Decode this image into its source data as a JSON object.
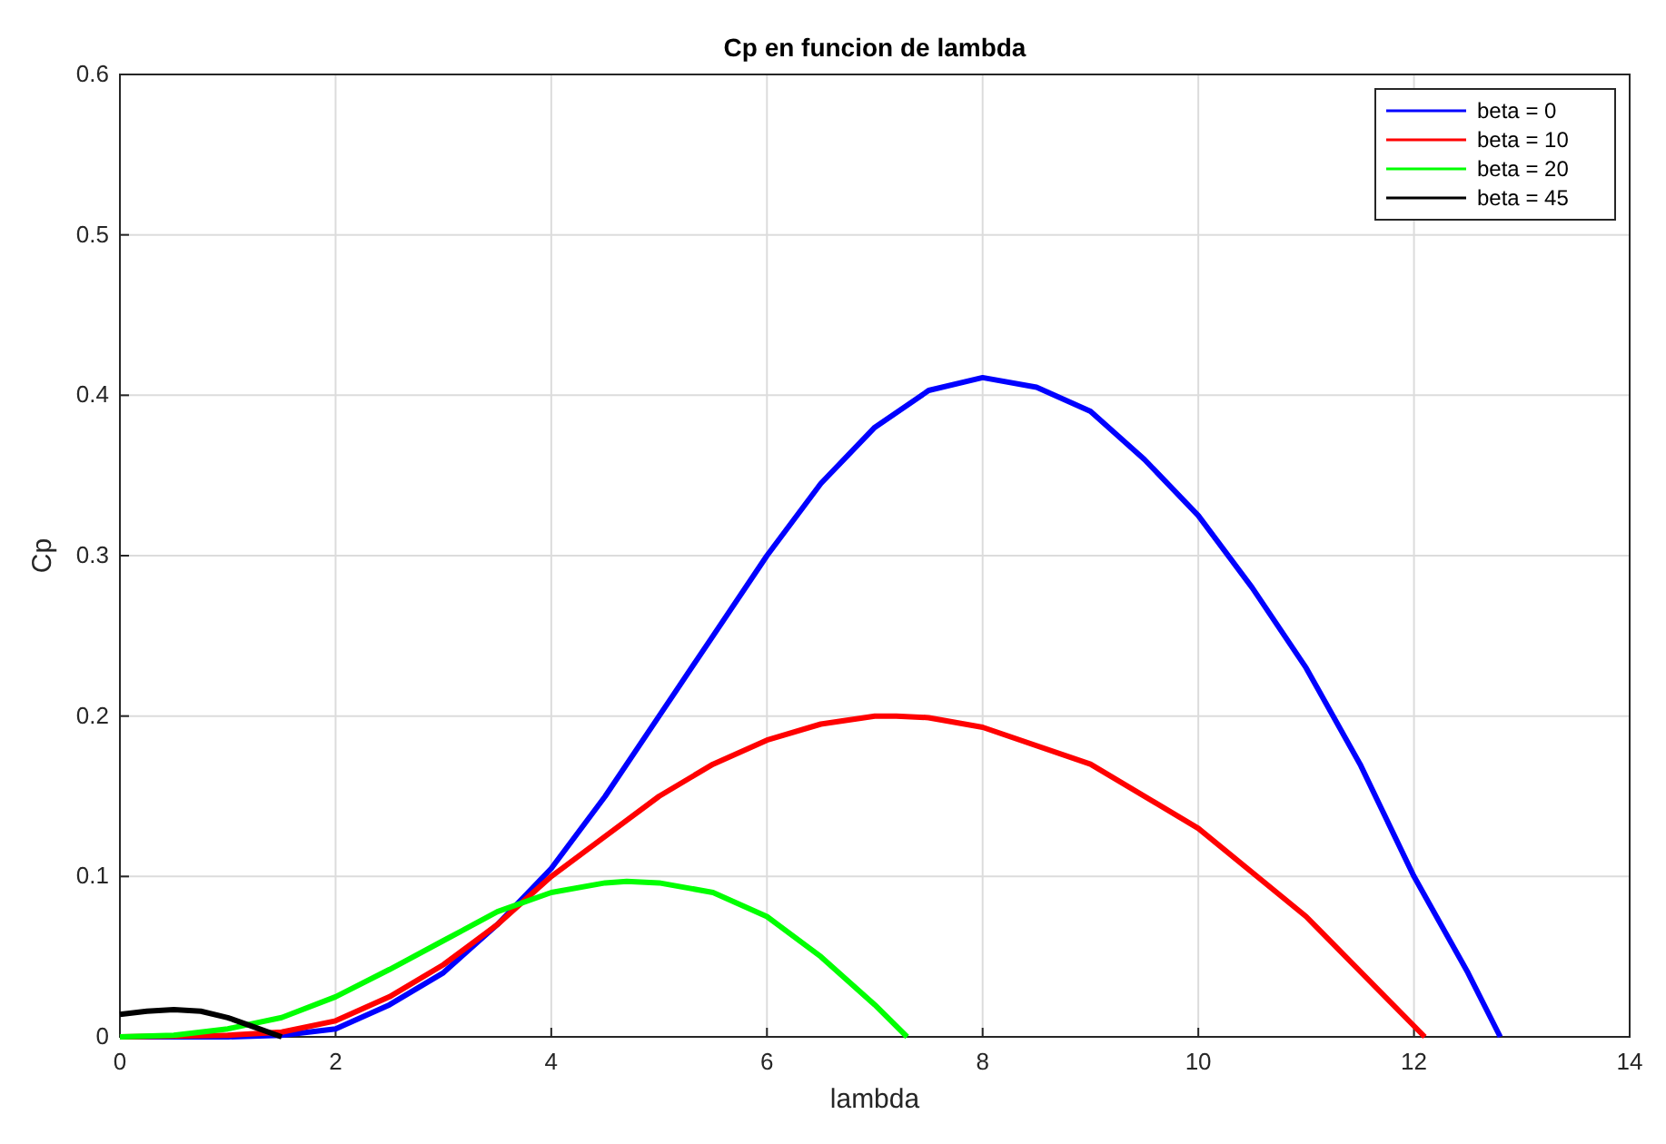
{
  "chart_data": {
    "type": "line",
    "title": "Cp en funcion de lambda",
    "xlabel": "lambda",
    "ylabel": "Cp",
    "xlim": [
      0,
      14
    ],
    "ylim": [
      0,
      0.6
    ],
    "xticks": [
      0,
      2,
      4,
      6,
      8,
      10,
      12,
      14
    ],
    "yticks": [
      0,
      0.1,
      0.2,
      0.3,
      0.4,
      0.5,
      0.6
    ],
    "grid": true,
    "legend": "top right",
    "series": [
      {
        "name": "beta = 0",
        "color": "#0000ff",
        "x": [
          0,
          1,
          1.5,
          2,
          2.5,
          3,
          3.5,
          4,
          4.5,
          5,
          5.5,
          6,
          6.5,
          7,
          7.5,
          8,
          8.5,
          9,
          9.5,
          10,
          10.5,
          11,
          11.5,
          12,
          12.5,
          12.8
        ],
        "values": [
          0,
          0,
          0.001,
          0.005,
          0.02,
          0.04,
          0.07,
          0.105,
          0.15,
          0.2,
          0.25,
          0.3,
          0.345,
          0.38,
          0.403,
          0.411,
          0.405,
          0.39,
          0.36,
          0.325,
          0.28,
          0.23,
          0.17,
          0.1,
          0.04,
          0
        ]
      },
      {
        "name": "beta = 10",
        "color": "#ff0000",
        "x": [
          0,
          1,
          1.5,
          2,
          2.5,
          3,
          3.5,
          4,
          4.5,
          5,
          5.5,
          6,
          6.5,
          7,
          7.2,
          7.5,
          8,
          9,
          10,
          11,
          12.1
        ],
        "values": [
          0,
          0.001,
          0.003,
          0.01,
          0.025,
          0.045,
          0.07,
          0.1,
          0.125,
          0.15,
          0.17,
          0.185,
          0.195,
          0.2,
          0.2,
          0.199,
          0.193,
          0.17,
          0.13,
          0.075,
          0
        ]
      },
      {
        "name": "beta = 20",
        "color": "#00ff00",
        "x": [
          0,
          0.5,
          1,
          1.5,
          2,
          2.5,
          3,
          3.5,
          4,
          4.5,
          4.7,
          5,
          5.5,
          6,
          6.5,
          7,
          7.3
        ],
        "values": [
          0,
          0.001,
          0.005,
          0.012,
          0.025,
          0.042,
          0.06,
          0.078,
          0.09,
          0.096,
          0.097,
          0.096,
          0.09,
          0.075,
          0.05,
          0.02,
          0
        ]
      },
      {
        "name": "beta = 45",
        "color": "#000000",
        "x": [
          0,
          0.25,
          0.5,
          0.75,
          1,
          1.25,
          1.5
        ],
        "values": [
          0.014,
          0.016,
          0.017,
          0.016,
          0.012,
          0.006,
          0
        ]
      }
    ]
  }
}
